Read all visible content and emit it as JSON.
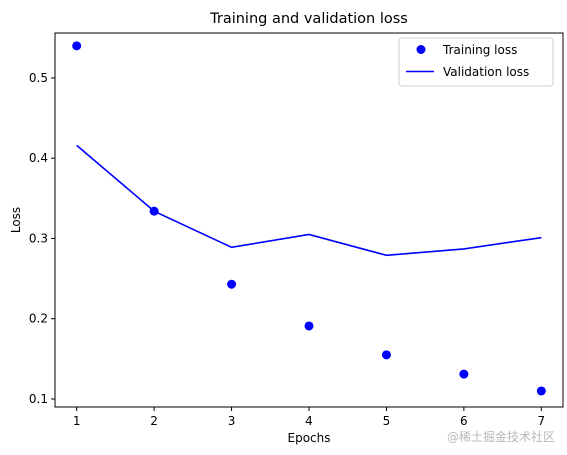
{
  "chart_data": {
    "type": "line",
    "title": "Training and validation loss",
    "xlabel": "Epochs",
    "ylabel": "Loss",
    "xlim": [
      0.72,
      7.28
    ],
    "ylim": [
      0.09,
      0.556
    ],
    "xticks": [
      1,
      2,
      3,
      4,
      5,
      6,
      7
    ],
    "yticks": [
      0.1,
      0.2,
      0.3,
      0.4,
      0.5
    ],
    "x": [
      1,
      2,
      3,
      4,
      5,
      6,
      7
    ],
    "series": [
      {
        "name": "Training loss",
        "kind": "scatter",
        "color": "#0000ff",
        "values": [
          0.54,
          0.334,
          0.243,
          0.191,
          0.155,
          0.131,
          0.11
        ]
      },
      {
        "name": "Validation loss",
        "kind": "line",
        "color": "#0000ff",
        "values": [
          0.416,
          0.334,
          0.289,
          0.305,
          0.279,
          0.287,
          0.301
        ]
      }
    ],
    "legend": "top-right",
    "grid": false
  },
  "watermark": "@稀土掘金技术社区"
}
